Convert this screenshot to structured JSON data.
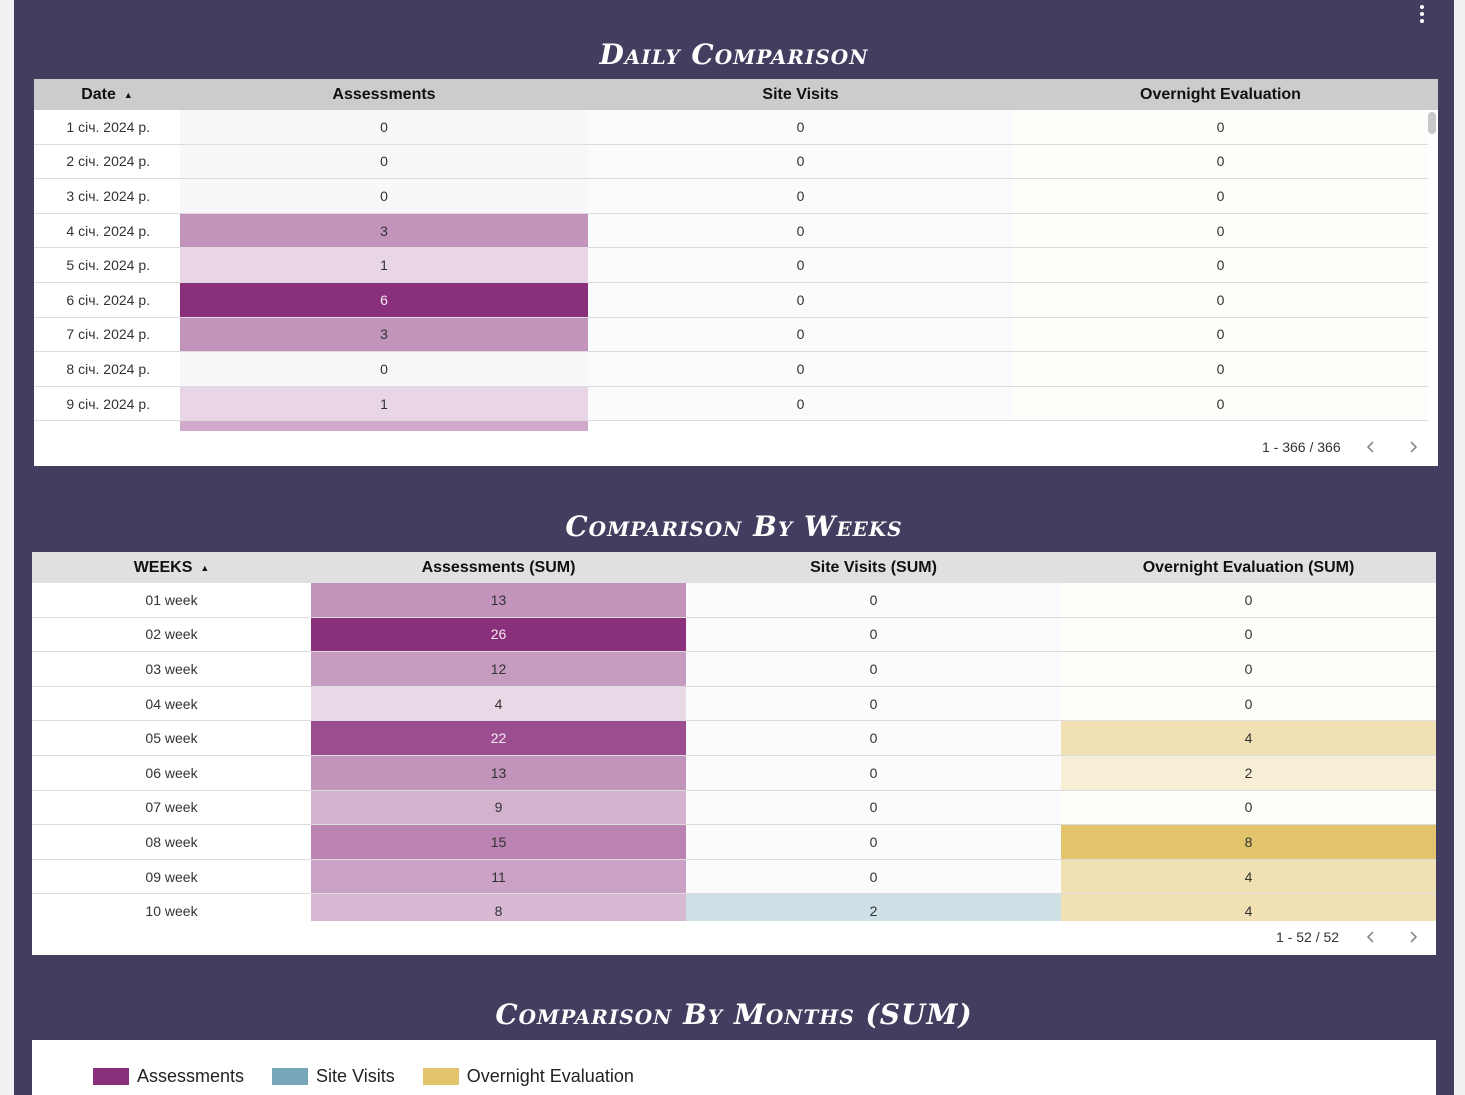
{
  "colors": {
    "background": "#433d5f",
    "assessments": "#8a2f7c",
    "site_visits": "#76a6b7",
    "overnight": "#e2c46c"
  },
  "menu": {
    "icon": "more-vert-icon"
  },
  "daily": {
    "title": "Daily Comparison",
    "columns": [
      "Date",
      "Assessments",
      "Site Visits",
      "Overnight Evaluation"
    ],
    "sort_icon": "▲",
    "rows": [
      {
        "date": "1 січ. 2024 р.",
        "a": "0",
        "s": "0",
        "o": "0"
      },
      {
        "date": "2 січ. 2024 р.",
        "a": "0",
        "s": "0",
        "o": "0"
      },
      {
        "date": "3 січ. 2024 р.",
        "a": "0",
        "s": "0",
        "o": "0"
      },
      {
        "date": "4 січ. 2024 р.",
        "a": "3",
        "s": "0",
        "o": "0"
      },
      {
        "date": "5 січ. 2024 р.",
        "a": "1",
        "s": "0",
        "o": "0"
      },
      {
        "date": "6 січ. 2024 р.",
        "a": "6",
        "s": "0",
        "o": "0"
      },
      {
        "date": "7 січ. 2024 р.",
        "a": "3",
        "s": "0",
        "o": "0"
      },
      {
        "date": "8 січ. 2024 р.",
        "a": "0",
        "s": "0",
        "o": "0"
      },
      {
        "date": "9 січ. 2024 р.",
        "a": "1",
        "s": "0",
        "o": "0"
      }
    ],
    "pagination": "1 - 366 / 366"
  },
  "weekly": {
    "title": "Comparison By Weeks",
    "columns": [
      "WEEKS",
      "Assessments (SUM)",
      "Site Visits (SUM)",
      "Overnight Evaluation (SUM)"
    ],
    "sort_icon": "▲",
    "rows": [
      {
        "week": "01 week",
        "a": "13",
        "s": "0",
        "o": "0"
      },
      {
        "week": "02 week",
        "a": "26",
        "s": "0",
        "o": "0"
      },
      {
        "week": "03 week",
        "a": "12",
        "s": "0",
        "o": "0"
      },
      {
        "week": "04 week",
        "a": "4",
        "s": "0",
        "o": "0"
      },
      {
        "week": "05 week",
        "a": "22",
        "s": "0",
        "o": "4"
      },
      {
        "week": "06 week",
        "a": "13",
        "s": "0",
        "o": "2"
      },
      {
        "week": "07 week",
        "a": "9",
        "s": "0",
        "o": "0"
      },
      {
        "week": "08 week",
        "a": "15",
        "s": "0",
        "o": "8"
      },
      {
        "week": "09 week",
        "a": "11",
        "s": "0",
        "o": "4"
      },
      {
        "week": "10 week",
        "a": "8",
        "s": "2",
        "o": "4"
      }
    ],
    "pagination": "1 - 52 / 52"
  },
  "monthly": {
    "title": "Comparison By Months (SUM)",
    "legend": [
      "Assessments",
      "Site Visits",
      "Overnight Evaluation"
    ]
  }
}
